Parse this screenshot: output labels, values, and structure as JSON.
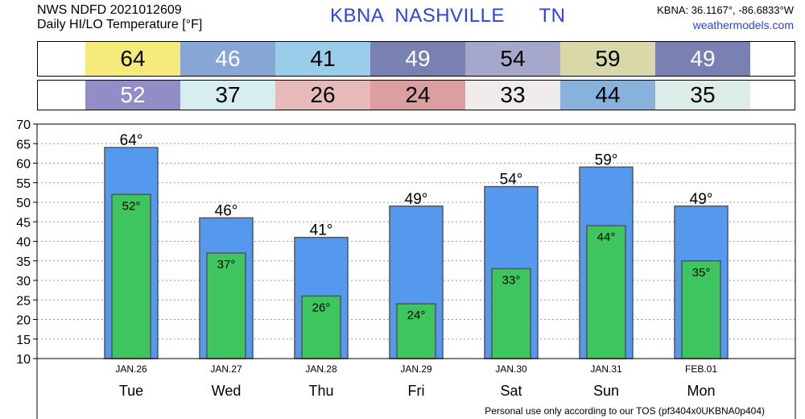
{
  "header": {
    "line1": "NWS NDFD 2021012609",
    "line2": "Daily HI/LO Temperature [°F]",
    "station": "KBNA",
    "city": "NASHVILLE",
    "state": "TN",
    "coords": "KBNA: 36.1167°, -86.6833°W",
    "site": "weathermodels.com"
  },
  "hi_band": [
    {
      "label": "64",
      "color": "#f7ea7c",
      "text_color": "#000000"
    },
    {
      "label": "46",
      "color": "#87a6d6",
      "text_color": "#ffffff"
    },
    {
      "label": "41",
      "color": "#99cdea",
      "text_color": "#000000"
    },
    {
      "label": "49",
      "color": "#7981b2",
      "text_color": "#ffffff"
    },
    {
      "label": "54",
      "color": "#a5a7cb",
      "text_color": "#000000"
    },
    {
      "label": "59",
      "color": "#d8d8a8",
      "text_color": "#000000"
    },
    {
      "label": "49",
      "color": "#7981b2",
      "text_color": "#ffffff"
    }
  ],
  "lo_band": [
    {
      "label": "52",
      "color": "#928dc7",
      "text_color": "#ffffff"
    },
    {
      "label": "37",
      "color": "#d6eeef",
      "text_color": "#000000"
    },
    {
      "label": "26",
      "color": "#e8b9b9",
      "text_color": "#000000"
    },
    {
      "label": "24",
      "color": "#dc9f9f",
      "text_color": "#000000"
    },
    {
      "label": "33",
      "color": "#efebea",
      "text_color": "#000000"
    },
    {
      "label": "44",
      "color": "#87b2dc",
      "text_color": "#000000"
    },
    {
      "label": "35",
      "color": "#dcece8",
      "text_color": "#000000"
    }
  ],
  "chart_data": {
    "type": "bar",
    "categories": [
      "Tue",
      "Wed",
      "Thu",
      "Fri",
      "Sat",
      "Sun",
      "Mon"
    ],
    "dates": [
      "JAN.26",
      "JAN.27",
      "JAN.28",
      "JAN.29",
      "JAN.30",
      "JAN.31",
      "FEB.01"
    ],
    "series": [
      {
        "values": [
          64,
          46,
          41,
          49,
          54,
          59,
          49
        ],
        "color": "#5599ef"
      },
      {
        "values": [
          52,
          37,
          26,
          24,
          33,
          44,
          35
        ],
        "color": "#3ec55e"
      }
    ],
    "hi_labels": [
      "64°",
      "46°",
      "41°",
      "49°",
      "54°",
      "59°",
      "49°"
    ],
    "lo_labels": [
      "52°",
      "37°",
      "26°",
      "24°",
      "33°",
      "44°",
      "35°"
    ],
    "yticks": [
      "10",
      "15",
      "20",
      "25",
      "30",
      "35",
      "40",
      "45",
      "50",
      "55",
      "60",
      "65",
      "70"
    ],
    "ylim": [
      10,
      70
    ],
    "grid": true
  },
  "footer": "Personal use only according to our TOS (pf3404x0UKBNA0p404)"
}
